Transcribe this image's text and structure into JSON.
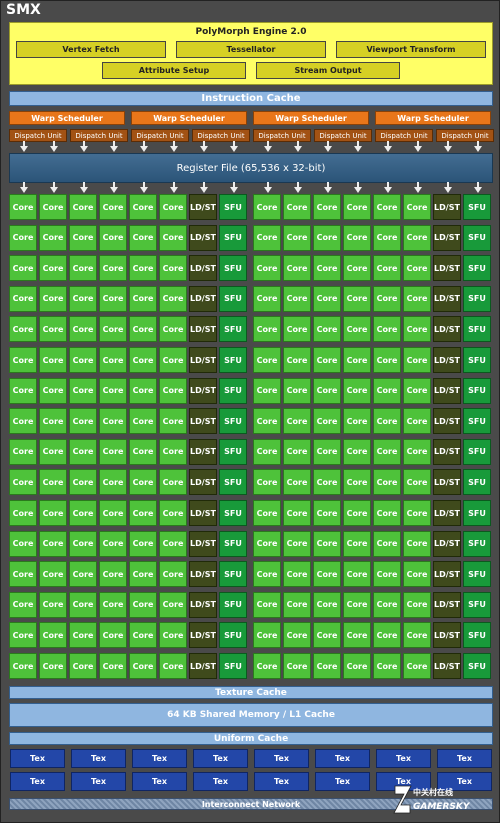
{
  "smx_label": "SMX",
  "polymorph": {
    "title": "PolyMorph Engine 2.0",
    "row1": [
      "Vertex Fetch",
      "Tessellator",
      "Viewport Transform"
    ],
    "row2": [
      "Attribute Setup",
      "Stream Output"
    ]
  },
  "instruction_cache": "Instruction Cache",
  "warp_scheduler": "Warp Scheduler",
  "dispatch_unit": "Dispatch Unit",
  "register_file": "Register File (65,536 x 32-bit)",
  "core_label": "Core",
  "ldst_label": "LD/ST",
  "sfu_label": "SFU",
  "texture_cache": "Texture Cache",
  "shared_memory": "64 KB Shared Memory / L1 Cache",
  "uniform_cache": "Uniform Cache",
  "tex_label": "Tex",
  "interconnect": "Interconnect Network",
  "watermark": {
    "line1": "中关村在线",
    "line2": "GAMERSKY"
  },
  "colors": {
    "core": "#4ec23a",
    "ldst": "#3f4a1c",
    "sfu": "#189a3a",
    "warp": "#e8761a",
    "dispatch": "#a25214",
    "tex": "#2347a8",
    "polymorph": "#ffff66"
  }
}
